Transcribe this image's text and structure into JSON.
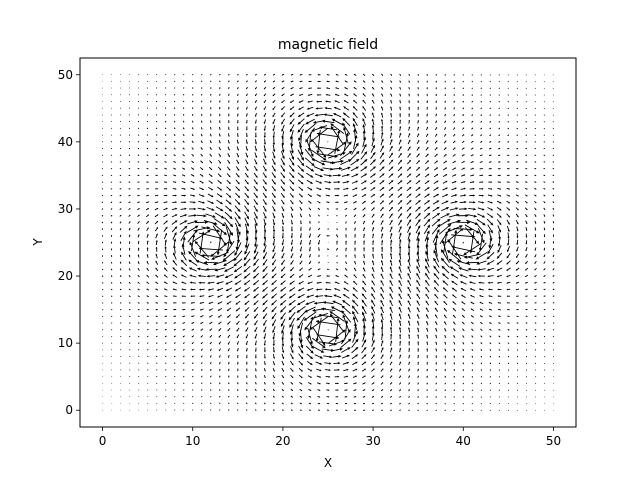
{
  "chart_data": {
    "type": "quiver",
    "title": "magnetic field",
    "xlabel": "X",
    "ylabel": "Y",
    "xlim": [
      -2.5,
      52.5
    ],
    "ylim": [
      -2.5,
      52.5
    ],
    "xticks": [
      "0",
      "10",
      "20",
      "30",
      "40",
      "50"
    ],
    "yticks": [
      "0",
      "10",
      "20",
      "30",
      "40",
      "50"
    ],
    "grid": {
      "x": [
        0,
        50
      ],
      "y": [
        0,
        50
      ],
      "step": 1
    },
    "sources": [
      {
        "x": 25,
        "y": 40,
        "strength": 1
      },
      {
        "x": 12,
        "y": 25,
        "strength": -1
      },
      {
        "x": 40,
        "y": 25,
        "strength": -1
      },
      {
        "x": 25,
        "y": 12,
        "strength": 1
      },
      {
        "x": 25,
        "y": 25,
        "strength": 0.15
      }
    ],
    "arrow_color": "#000000"
  }
}
